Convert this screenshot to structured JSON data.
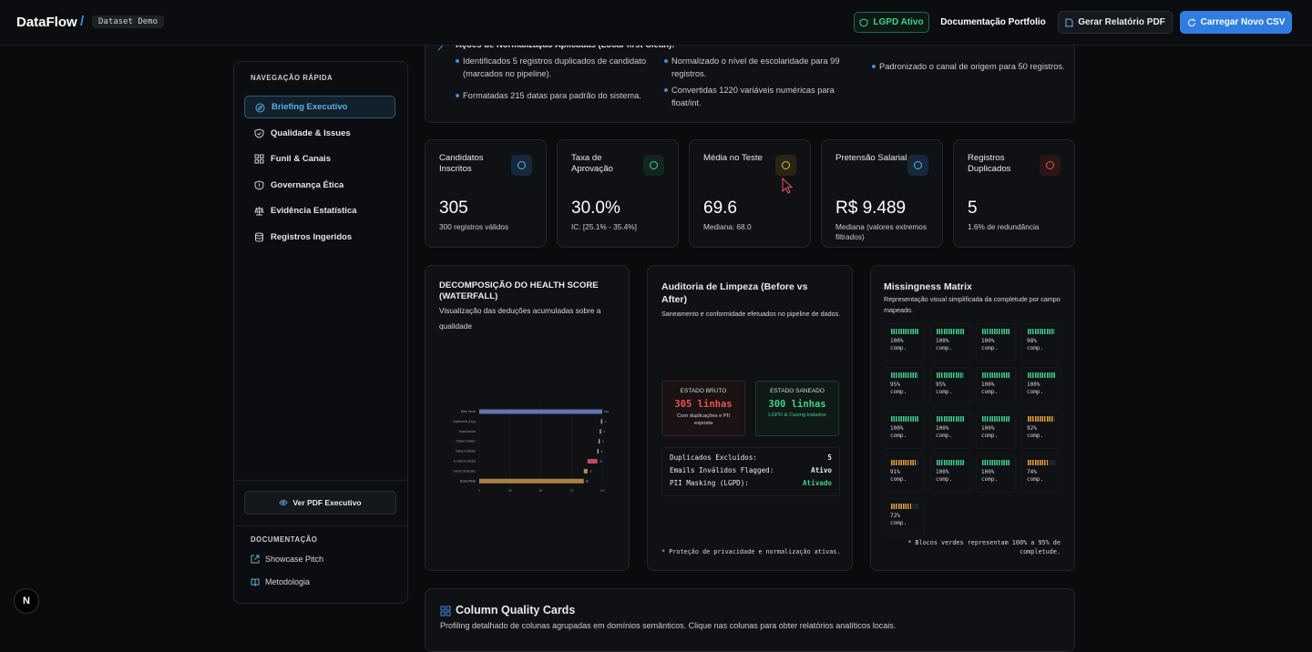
{
  "header": {
    "brand": "DataFlow",
    "separator": "/",
    "dataset": "Dataset Demo",
    "buttons": [
      "LGPD Ativo",
      "Documentação Portfolio",
      "Gerar Relatório PDF",
      "Carregar Novo CSV"
    ]
  },
  "sidebar": {
    "nav_title": "NAVEGAÇÃO RÁPIDA",
    "nav_items": [
      "Briefing Executivo",
      "Qualidade & Issues",
      "Funil & Canais",
      "Governança Ética",
      "Evidência Estatística",
      "Registros Ingeridos"
    ],
    "pdf_button": "Ver PDF Executivo",
    "docs_title": "DOCUMENTAÇÃO",
    "docs_links": [
      "Showcase Pitch",
      "Metodologia"
    ]
  },
  "actions_card": {
    "title": "Ações de Normalização Aplicadas (Local-first Clean):",
    "items": [
      "Identificados 5 registros duplicados de candidato (marcados no pipeline).",
      "Formatadas 215 datas para padrão do sistema.",
      "Normalizado o nível de escolaridade para 99 registros.",
      "Convertidas 1220 variáveis numéricas para float/int.",
      "Padronizado o canal de origem para 50 registros."
    ]
  },
  "kpis": [
    {
      "label": "Candidatos Inscritos",
      "value": "305",
      "note": "300 registros válidos"
    },
    {
      "label": "Taxa de Aprovação",
      "value": "30.0%",
      "note": "IC: [25.1% - 35.4%]"
    },
    {
      "label": "Média no Teste",
      "value": "69.6",
      "note": "Mediana: 68.0"
    },
    {
      "label": "Pretensão Salarial",
      "value": "R$ 9.489",
      "note": "Mediana (valores extremos filtrados)"
    },
    {
      "label": "Registros Duplicados",
      "value": "5",
      "note": "1.6% de redundância"
    }
  ],
  "waterfall": {
    "title": "DECOMPOSIÇÃO DO HEALTH SCORE (WATERFALL)",
    "subtitle": "Visualização das deduções acumuladas sobre a qualidade",
    "chart_data": {
      "type": "waterfall",
      "categories": [
        "Base Inicial",
        "Duplicados (Dup)",
        "Nulos/Vazios",
        "Outliers Salário",
        "Datas Inválidas",
        "E-mails Inválidos",
        "Outras Deduções",
        "Score Final"
      ],
      "values": [
        100,
        -1,
        -1,
        -1,
        -1,
        -8,
        -3,
        85
      ],
      "colors": [
        "#6f86c9",
        "#c9ccd2",
        "#c9ccd2",
        "#c9ccd2",
        "#c9ccd2",
        "#e0556a",
        "#d8a24a",
        "#c9974a"
      ],
      "xlim": [
        0,
        100
      ],
      "xticks": [
        0,
        25,
        50,
        75,
        100
      ],
      "grid": true
    }
  },
  "audit": {
    "title": "Auditoria de Limpeza (Before vs After)",
    "subtitle": "Saneamento e conformidade efetuados no pipeline de dados.",
    "raw": {
      "label": "ESTADO BRUTO",
      "value": "305 linhas",
      "note": "Com duplicações e PII exposta"
    },
    "clean": {
      "label": "ESTADO SANEADO",
      "value": "300 linhas",
      "note": "LGPD & Casing tratados"
    },
    "rows": [
      {
        "label": "Duplicados Excluídos:",
        "value": "5"
      },
      {
        "label": "Emails Inválidos Flagged:",
        "value": "Ativo"
      },
      {
        "label": "PII Masking (LGPD):",
        "value": "Ativado"
      }
    ],
    "footnote": "* Proteção de privacidade e normalização ativas."
  },
  "missingness": {
    "title": "Missingness Matrix",
    "subtitle": "Representação visual simplificada da completude por campo mapeado.",
    "values": [
      100,
      100,
      100,
      98,
      95,
      95,
      100,
      100,
      100,
      100,
      100,
      92,
      91,
      100,
      100,
      74,
      72
    ],
    "value_labels": [
      "100%",
      "100%",
      "100%",
      "98%",
      "95%",
      "95%",
      "100%",
      "100%",
      "100%",
      "100%",
      "100%",
      "92%",
      "91%",
      "100%",
      "100%",
      "74%",
      "72%"
    ],
    "colors": [
      "#3ecf8e",
      "#3ecf8e",
      "#3ecf8e",
      "#3ecf8e",
      "#3ecf8e",
      "#3ecf8e",
      "#3ecf8e",
      "#3ecf8e",
      "#3ecf8e",
      "#3ecf8e",
      "#3ecf8e",
      "#e8a13a",
      "#e8a13a",
      "#3ecf8e",
      "#3ecf8e",
      "#e8a13a",
      "#e8a13a"
    ],
    "unit_label": "comp.",
    "footnote": "* Blocos verdes representam 100% a 95% de completude."
  },
  "column_quality": {
    "title": "Column Quality Cards",
    "subtitle": "Profiling detalhado de colunas agrupadas em domínios semânticos. Clique nas colunas para obter relatórios analíticos locais."
  },
  "badge": "N"
}
